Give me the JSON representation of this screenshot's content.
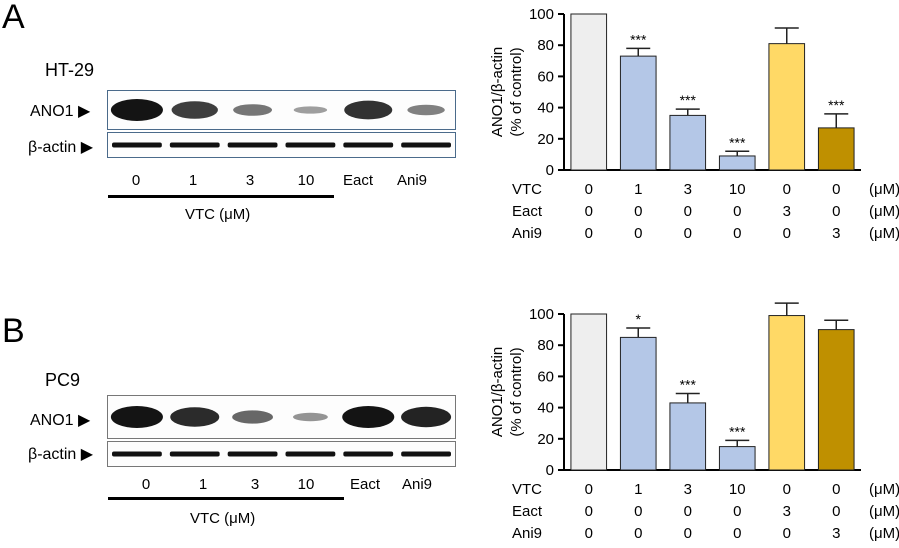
{
  "panels": [
    {
      "letter": "A",
      "cell_line": "HT-29",
      "blot_rows": [
        "ANO1 ▶",
        "β-actin ▶"
      ],
      "lanes": [
        "0",
        "1",
        "3",
        "10",
        "Eact",
        "Ani9"
      ],
      "vtc_label": "VTC (μM)",
      "band_intensity": [
        1.0,
        0.72,
        0.35,
        0.08,
        0.8,
        0.28
      ]
    },
    {
      "letter": "B",
      "cell_line": "PC9",
      "blot_rows": [
        "ANO1 ▶",
        "β-actin ▶"
      ],
      "lanes": [
        "0",
        "1",
        "3",
        "10",
        "Eact",
        "Ani9"
      ],
      "vtc_label": "VTC (μM)",
      "band_intensity": [
        1.0,
        0.85,
        0.45,
        0.15,
        1.0,
        0.9
      ]
    }
  ],
  "chart_data": [
    {
      "type": "bar",
      "ylabel": "ANO1/β-actin\n(% of control)",
      "ylim": [
        0,
        100
      ],
      "yticks": [
        "0",
        "20",
        "40",
        "60",
        "80",
        "100"
      ],
      "values": [
        100,
        73,
        35,
        9,
        81,
        27
      ],
      "errors": [
        0,
        5,
        4,
        3,
        10,
        9
      ],
      "significance": [
        "",
        "***",
        "***",
        "***",
        "",
        "***"
      ],
      "colors": [
        "#eeeeee",
        "#b4c7e7",
        "#b4c7e7",
        "#b4c7e7",
        "#ffd966",
        "#bf9000"
      ],
      "conditions": [
        {
          "name": "VTC",
          "values": [
            "0",
            "1",
            "3",
            "10",
            "0",
            "0"
          ],
          "unit": "(μM)"
        },
        {
          "name": "Eact",
          "values": [
            "0",
            "0",
            "0",
            "0",
            "3",
            "0"
          ],
          "unit": "(μM)"
        },
        {
          "name": "Ani9",
          "values": [
            "0",
            "0",
            "0",
            "0",
            "0",
            "3"
          ],
          "unit": "(μM)"
        }
      ]
    },
    {
      "type": "bar",
      "ylabel": "ANO1/β-actin\n(% of control)",
      "ylim": [
        0,
        100
      ],
      "yticks": [
        "0",
        "20",
        "40",
        "60",
        "80",
        "100"
      ],
      "values": [
        100,
        85,
        43,
        15,
        99,
        90
      ],
      "errors": [
        0,
        6,
        6,
        4,
        8,
        6
      ],
      "significance": [
        "",
        "*",
        "***",
        "***",
        "",
        ""
      ],
      "colors": [
        "#eeeeee",
        "#b4c7e7",
        "#b4c7e7",
        "#b4c7e7",
        "#ffd966",
        "#bf9000"
      ],
      "conditions": [
        {
          "name": "VTC",
          "values": [
            "0",
            "1",
            "3",
            "10",
            "0",
            "0"
          ],
          "unit": "(μM)"
        },
        {
          "name": "Eact",
          "values": [
            "0",
            "0",
            "0",
            "0",
            "3",
            "0"
          ],
          "unit": "(μM)"
        },
        {
          "name": "Ani9",
          "values": [
            "0",
            "0",
            "0",
            "0",
            "0",
            "3"
          ],
          "unit": "(μM)"
        }
      ]
    }
  ]
}
